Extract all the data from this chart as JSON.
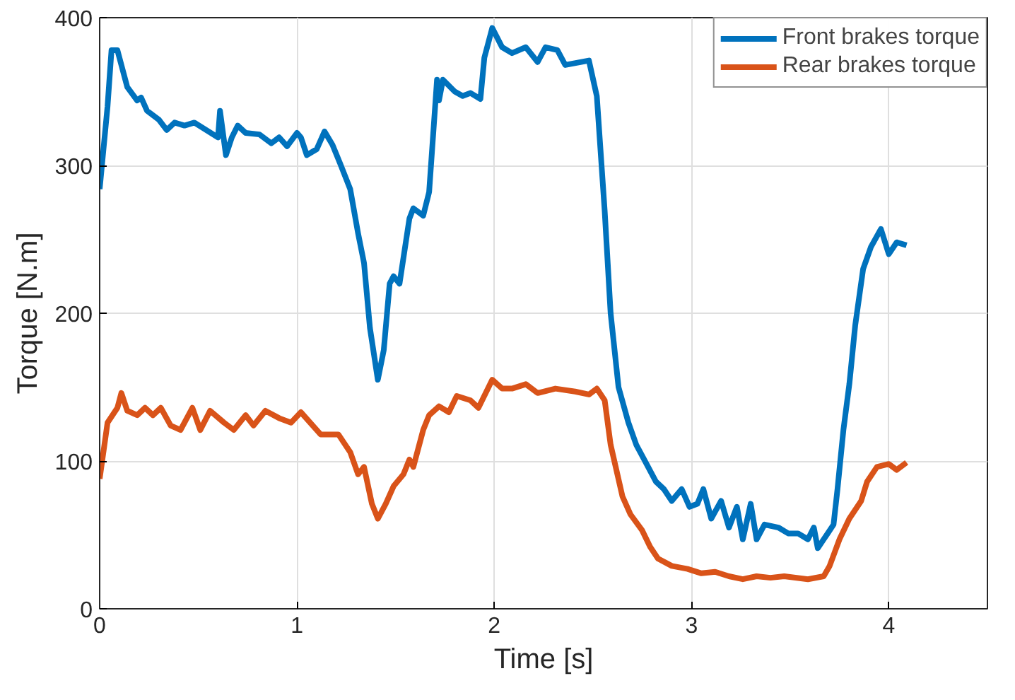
{
  "chart_data": {
    "type": "line",
    "xlabel": "Time [s]",
    "ylabel": "Torque [N.m]",
    "xlim": [
      0,
      4.5
    ],
    "ylim": [
      0,
      400
    ],
    "xticks": [
      0,
      1,
      2,
      3,
      4
    ],
    "yticks": [
      0,
      100,
      200,
      300,
      400
    ],
    "grid": true,
    "legend": "top right",
    "line_style": "solid",
    "series": [
      {
        "name": "Front brakes torque",
        "color": "#0072bd",
        "x": [
          0,
          0.04,
          0.06,
          0.09,
          0.14,
          0.19,
          0.21,
          0.24,
          0.3,
          0.34,
          0.38,
          0.43,
          0.48,
          0.54,
          0.6,
          0.61,
          0.64,
          0.67,
          0.7,
          0.74,
          0.81,
          0.87,
          0.91,
          0.95,
          1.0,
          1.02,
          1.05,
          1.1,
          1.14,
          1.18,
          1.22,
          1.27,
          1.31,
          1.34,
          1.37,
          1.41,
          1.44,
          1.47,
          1.49,
          1.52,
          1.57,
          1.59,
          1.64,
          1.67,
          1.71,
          1.72,
          1.74,
          1.8,
          1.84,
          1.88,
          1.93,
          1.95,
          1.99,
          2.04,
          2.09,
          2.16,
          2.22,
          2.26,
          2.32,
          2.36,
          2.48,
          2.52,
          2.56,
          2.59,
          2.63,
          2.68,
          2.72,
          2.76,
          2.82,
          2.86,
          2.9,
          2.95,
          2.99,
          3.03,
          3.06,
          3.1,
          3.15,
          3.19,
          3.23,
          3.26,
          3.3,
          3.33,
          3.37,
          3.44,
          3.49,
          3.54,
          3.59,
          3.62,
          3.64,
          3.69,
          3.72,
          3.74,
          3.77,
          3.8,
          3.83,
          3.87,
          3.91,
          3.96,
          4.0,
          4.04,
          4.09
        ],
        "values": [
          284,
          340,
          378,
          378,
          353,
          344,
          346,
          337,
          331,
          324,
          329,
          327,
          329,
          324,
          319,
          337,
          307,
          319,
          327,
          322,
          321,
          315,
          319,
          313,
          322,
          319,
          307,
          311,
          323,
          314,
          301,
          284,
          254,
          234,
          190,
          155,
          175,
          220,
          225,
          220,
          264,
          271,
          266,
          282,
          358,
          344,
          358,
          350,
          347,
          349,
          345,
          373,
          393,
          380,
          376,
          380,
          370,
          380,
          378,
          368,
          371,
          347,
          269,
          200,
          150,
          126,
          111,
          101,
          86,
          81,
          73,
          81,
          69,
          71,
          81,
          61,
          73,
          55,
          69,
          47,
          71,
          47,
          57,
          55,
          51,
          51,
          47,
          55,
          41,
          51,
          57,
          81,
          121,
          152,
          192,
          230,
          245,
          257,
          240,
          248,
          246
        ]
      },
      {
        "name": "Rear brakes torque",
        "color": "#d95319",
        "x": [
          0,
          0.04,
          0.09,
          0.11,
          0.14,
          0.19,
          0.23,
          0.27,
          0.31,
          0.36,
          0.41,
          0.47,
          0.51,
          0.56,
          0.63,
          0.68,
          0.74,
          0.78,
          0.84,
          0.91,
          0.97,
          1.02,
          1.12,
          1.21,
          1.27,
          1.31,
          1.34,
          1.38,
          1.41,
          1.45,
          1.49,
          1.54,
          1.57,
          1.59,
          1.64,
          1.67,
          1.72,
          1.77,
          1.81,
          1.88,
          1.92,
          1.99,
          2.04,
          2.09,
          2.16,
          2.22,
          2.31,
          2.41,
          2.48,
          2.52,
          2.56,
          2.59,
          2.65,
          2.69,
          2.75,
          2.79,
          2.83,
          2.9,
          2.98,
          3.05,
          3.12,
          3.19,
          3.26,
          3.33,
          3.4,
          3.47,
          3.59,
          3.67,
          3.7,
          3.75,
          3.8,
          3.86,
          3.89,
          3.94,
          4.0,
          4.04,
          4.09
        ],
        "values": [
          88,
          126,
          136,
          146,
          134,
          131,
          136,
          131,
          136,
          124,
          121,
          136,
          121,
          134,
          126,
          121,
          131,
          124,
          134,
          129,
          126,
          133,
          118,
          118,
          106,
          91,
          96,
          71,
          61,
          71,
          83,
          91,
          101,
          96,
          121,
          131,
          137,
          133,
          144,
          141,
          136,
          155,
          149,
          149,
          152,
          146,
          149,
          147,
          145,
          149,
          141,
          111,
          76,
          64,
          53,
          42,
          34,
          29,
          27,
          24,
          25,
          22,
          20,
          22,
          21,
          22,
          20,
          22,
          29,
          47,
          61,
          73,
          86,
          96,
          98,
          94,
          99
        ]
      }
    ]
  }
}
